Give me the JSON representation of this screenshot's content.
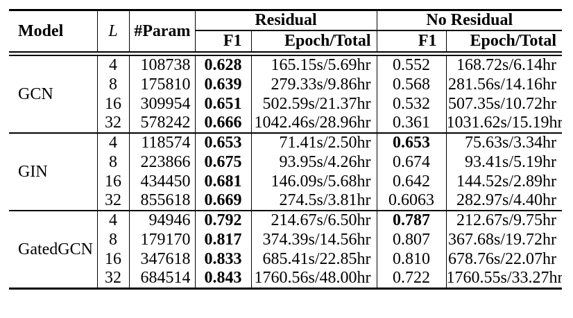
{
  "page": {
    "background_color": "#ffffff",
    "text_color": "#000000",
    "rule_color": "#000000"
  },
  "table": {
    "header": {
      "model": "Model",
      "layers": "L",
      "param": "#Param",
      "groups": [
        {
          "label": "Residual",
          "sub": [
            "F1",
            "Epoch/Total"
          ]
        },
        {
          "label": "No Residual",
          "sub": [
            "F1",
            "Epoch/Total"
          ]
        }
      ]
    },
    "sections": [
      {
        "model": "GCN",
        "rows": [
          {
            "layers": "4",
            "param": "108738",
            "res_f1": "0.628",
            "res_f1_bold": true,
            "res_epoch": "165.15s/5.69hr",
            "nores_f1": "0.552",
            "nores_f1_bold": false,
            "nores_epoch": "168.72s/6.14hr"
          },
          {
            "layers": "8",
            "param": "175810",
            "res_f1": "0.639",
            "res_f1_bold": true,
            "res_epoch": "279.33s/9.86hr",
            "nores_f1": "0.568",
            "nores_f1_bold": false,
            "nores_epoch": "281.56s/14.16hr"
          },
          {
            "layers": "16",
            "param": "309954",
            "res_f1": "0.651",
            "res_f1_bold": true,
            "res_epoch": "502.59s/21.37hr",
            "nores_f1": "0.532",
            "nores_f1_bold": false,
            "nores_epoch": "507.35s/10.72hr"
          },
          {
            "layers": "32",
            "param": "578242",
            "res_f1": "0.666",
            "res_f1_bold": true,
            "res_epoch": "1042.46s/28.96hr",
            "nores_f1": "0.361",
            "nores_f1_bold": false,
            "nores_epoch": "1031.62s/15.19hr"
          }
        ]
      },
      {
        "model": "GIN",
        "rows": [
          {
            "layers": "4",
            "param": "118574",
            "res_f1": "0.653",
            "res_f1_bold": true,
            "res_epoch": "71.41s/2.50hr",
            "nores_f1": "0.653",
            "nores_f1_bold": true,
            "nores_epoch": "75.63s/3.34hr"
          },
          {
            "layers": "8",
            "param": "223866",
            "res_f1": "0.675",
            "res_f1_bold": true,
            "res_epoch": "93.95s/4.26hr",
            "nores_f1": "0.674",
            "nores_f1_bold": false,
            "nores_epoch": "93.41s/5.19hr"
          },
          {
            "layers": "16",
            "param": "434450",
            "res_f1": "0.681",
            "res_f1_bold": true,
            "res_epoch": "146.09s/5.68hr",
            "nores_f1": "0.642",
            "nores_f1_bold": false,
            "nores_epoch": "144.52s/2.89hr"
          },
          {
            "layers": "32",
            "param": "855618",
            "res_f1": "0.669",
            "res_f1_bold": true,
            "res_epoch": "274.5s/3.81hr",
            "nores_f1": "0.6063",
            "nores_f1_bold": false,
            "nores_epoch": "282.97s/4.40hr"
          }
        ]
      },
      {
        "model": "GatedGCN",
        "rows": [
          {
            "layers": "4",
            "param": "94946",
            "res_f1": "0.792",
            "res_f1_bold": true,
            "res_epoch": "214.67s/6.50hr",
            "nores_f1": "0.787",
            "nores_f1_bold": true,
            "nores_epoch": "212.67s/9.75hr"
          },
          {
            "layers": "8",
            "param": "179170",
            "res_f1": "0.817",
            "res_f1_bold": true,
            "res_epoch": "374.39s/14.56hr",
            "nores_f1": "0.807",
            "nores_f1_bold": false,
            "nores_epoch": "367.68s/19.72hr"
          },
          {
            "layers": "16",
            "param": "347618",
            "res_f1": "0.833",
            "res_f1_bold": true,
            "res_epoch": "685.41s/22.85hr",
            "nores_f1": "0.810",
            "nores_f1_bold": false,
            "nores_epoch": "678.76s/22.07hr"
          },
          {
            "layers": "32",
            "param": "684514",
            "res_f1": "0.843",
            "res_f1_bold": true,
            "res_epoch": "1760.56s/48.00hr",
            "nores_f1": "0.722",
            "nores_f1_bold": false,
            "nores_epoch": "1760.55s/33.27hr"
          }
        ]
      }
    ]
  }
}
